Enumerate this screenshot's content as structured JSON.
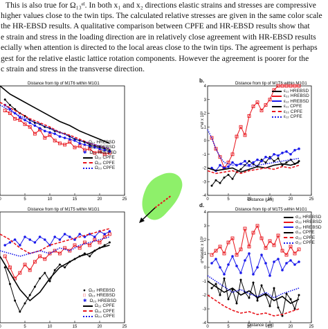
{
  "text_lines": [
    "This is also true for Ω₁₃ᵉˡ. In both x₁ and x₂ directions elastic strains and stresses are compressive",
    "higher values close to the twin tips. The calculated relative stresses are given in the same color scale",
    "the HR-EBSD results. A qualitative comparison between CPFE and HR-EBSD results show that",
    "e strain and stress in the loading direction are in relatively close agreement with HR-EBSD results",
    "ecially when attention is directed to the local areas close to the twin tips. The agreement is perhaps",
    "gest for the relative elastic lattice rotation components. However the agreement is poorer for the",
    "c strain and stress in the transverse direction."
  ],
  "panels": {
    "a_title": "Distance from tip of M1T6 within M1G1",
    "b_letter": "b.",
    "b_title": "Distance from tip of M1T6 within M1G1",
    "b_ylabel": "ε^el x 10³",
    "b_xlabel": "Distance (μm)",
    "c_title": "Distance from tip of M1T5 within M1G1",
    "d_letter": "d.",
    "d_title": "Distance from tip of M1T5 within M1G1",
    "d_ylabel": "σ^elastic x 10³",
    "d_xlabel": "Distance (μm)"
  },
  "legends": {
    "a": [
      "Ω₁₂ HREBSD",
      "Ω₁₃ HREBSD",
      "Ω₂₃ HREBSD",
      "Ω₁₂ CPFE",
      "Ω₁₃ CPFE",
      "Ω₂₃ CPFE"
    ],
    "b": [
      "ε₁₁ HREBSD",
      "ε₂₂ HREBSD",
      "ε₁₂ HREBSD",
      "ε₁₁ CPFE",
      "ε₂₂ CPFE",
      "ε₁₂ CPFE"
    ],
    "c": [
      "Ω₁₂ HREBSD",
      "Ω₁₃ HREBSD",
      "Ω₂₃ HREBSD",
      "Ω₁₂ CPFE",
      "Ω₁₃ CPFE",
      "Ω₂₃ CPFE"
    ],
    "d": [
      "σ₁₁ HREBSD",
      "σ₂₂ HREBSD",
      "σ₁₂ HREBSD",
      "σ₁₁ CPFE",
      "σ₂₂ CPFE",
      "σ₁₂ CPFE"
    ]
  },
  "colors": {
    "black": "#000000",
    "red": "#e8141b",
    "blue": "#1a1aeb",
    "grain": "#8ef06a"
  },
  "chart_data": [
    {
      "type": "line",
      "panel": "a",
      "title": "Distance from tip of M1T6 within M1G1",
      "xlim": [
        0,
        25
      ],
      "x_ticks": [
        0,
        5,
        10,
        15,
        20,
        25
      ],
      "series": [
        {
          "name": "Ω₁₂ HREBSD",
          "x": [
            1,
            2,
            3,
            4,
            5,
            6,
            7,
            8,
            9,
            10,
            11,
            12,
            13,
            14,
            15,
            16,
            17,
            18,
            19,
            20,
            21,
            22
          ],
          "y": [
            0.7,
            0.66,
            0.63,
            0.6,
            0.58,
            0.55,
            0.53,
            0.52,
            0.5,
            0.49,
            0.47,
            0.46,
            0.45,
            0.43,
            0.41,
            0.4,
            0.39,
            0.37,
            0.36,
            0.35,
            0.34,
            0.33
          ]
        },
        {
          "name": "Ω₁₃ HREBSD",
          "x": [
            1,
            2,
            3,
            4,
            5,
            6,
            7,
            8,
            9,
            10,
            11,
            12,
            13,
            14,
            15,
            16,
            17,
            18,
            19,
            20,
            21,
            22
          ],
          "y": [
            0.62,
            0.6,
            0.56,
            0.55,
            0.52,
            0.5,
            0.45,
            0.48,
            0.42,
            0.44,
            0.4,
            0.38,
            0.37,
            0.39,
            0.35,
            0.36,
            0.33,
            0.34,
            0.31,
            0.32,
            0.3,
            0.31
          ]
        },
        {
          "name": "Ω₂₃ HREBSD",
          "x": [
            1,
            2,
            3,
            4,
            5,
            6,
            7,
            8,
            9,
            10,
            11,
            12,
            13,
            14,
            15,
            16,
            17,
            18,
            19,
            20,
            21,
            22
          ],
          "y": [
            0.66,
            0.63,
            0.6,
            0.57,
            0.55,
            0.53,
            0.51,
            0.49,
            0.47,
            0.46,
            0.45,
            0.43,
            0.42,
            0.41,
            0.4,
            0.38,
            0.37,
            0.36,
            0.35,
            0.34,
            0.33,
            0.32
          ]
        },
        {
          "name": "Ω₁₂ CPFE",
          "x": [
            0,
            2,
            4,
            6,
            8,
            10,
            12,
            14,
            16,
            18,
            20,
            22
          ],
          "y": [
            0.8,
            0.74,
            0.7,
            0.66,
            0.62,
            0.58,
            0.54,
            0.51,
            0.47,
            0.44,
            0.41,
            0.38
          ]
        },
        {
          "name": "Ω₁₃ CPFE",
          "x": [
            0,
            2,
            4,
            6,
            8,
            10,
            12,
            14,
            16,
            18,
            20,
            22
          ],
          "y": [
            0.68,
            0.64,
            0.6,
            0.56,
            0.53,
            0.5,
            0.46,
            0.44,
            0.41,
            0.38,
            0.36,
            0.34
          ]
        },
        {
          "name": "Ω₂₃ CPFE",
          "x": [
            0,
            2,
            4,
            6,
            8,
            10,
            12,
            14,
            16,
            18,
            20,
            22
          ],
          "y": [
            0.66,
            0.62,
            0.58,
            0.55,
            0.52,
            0.49,
            0.46,
            0.43,
            0.4,
            0.38,
            0.36,
            0.34
          ]
        }
      ],
      "ylim": [
        0,
        0.8
      ]
    },
    {
      "type": "line",
      "panel": "b",
      "title": "Distance from tip of M1T6 within M1G1",
      "xlabel": "Distance (μm)",
      "ylabel": "ε^el x 10³",
      "xlim": [
        0,
        25
      ],
      "ylim": [
        -4,
        4
      ],
      "x_ticks": [
        0,
        5,
        10,
        15,
        20,
        25
      ],
      "y_ticks": [
        -4,
        -3,
        -2,
        -1,
        0,
        1,
        2,
        3,
        4
      ],
      "series": [
        {
          "name": "ε₁₁ HREBSD",
          "x": [
            1,
            2,
            3,
            4,
            5,
            6,
            7,
            8,
            9,
            10,
            11,
            12,
            13,
            14,
            15,
            16,
            17,
            18,
            19,
            20,
            21,
            22
          ],
          "y": [
            -3.3,
            -2.9,
            -3.1,
            -2.7,
            -2.5,
            -2.8,
            -2.3,
            -2.1,
            -1.8,
            -1.5,
            -1.7,
            -1.9,
            -1.4,
            -1.6,
            -1.2,
            -1.5,
            -1.3,
            -1.8,
            -1.6,
            -1.4,
            -1.7,
            -1.5
          ]
        },
        {
          "name": "ε₂₂ HREBSD",
          "x": [
            1,
            2,
            3,
            4,
            5,
            6,
            7,
            8,
            9,
            10,
            11,
            12,
            13,
            14,
            15,
            16,
            17,
            18,
            19,
            20,
            21,
            22
          ],
          "y": [
            0.2,
            -0.6,
            -1.2,
            -2.0,
            -1.6,
            -1.0,
            0.3,
            1.0,
            0.4,
            1.8,
            2.5,
            2.8,
            2.2,
            2.6,
            3.0,
            3.7,
            4.0,
            4.0,
            4.0,
            4.0,
            4.0,
            4.0
          ]
        },
        {
          "name": "ε₁₂ HREBSD",
          "x": [
            1,
            2,
            3,
            4,
            5,
            6,
            7,
            8,
            9,
            10,
            11,
            12,
            13,
            14,
            15,
            16,
            17,
            18,
            19,
            20,
            21,
            22
          ],
          "y": [
            -2.0,
            -2.2,
            -1.8,
            -2.0,
            -1.9,
            -1.6,
            -1.8,
            -1.7,
            -1.5,
            -1.8,
            -1.6,
            -1.4,
            -1.5,
            -1.2,
            -1.3,
            -1.0,
            -1.1,
            -0.9,
            -0.8,
            -1.0,
            -0.7,
            -0.6
          ]
        },
        {
          "name": "ε₁₁ CPFE",
          "x": [
            0,
            2,
            4,
            6,
            8,
            10,
            12,
            14,
            16,
            18,
            20,
            22
          ],
          "y": [
            -2.0,
            -2.2,
            -2.1,
            -2.0,
            -2.3,
            -2.1,
            -1.9,
            -2.0,
            -1.8,
            -1.7,
            -1.8,
            -1.6
          ]
        },
        {
          "name": "ε₂₂ CPFE",
          "x": [
            0,
            2,
            4,
            6,
            8,
            10,
            12,
            14,
            16,
            18,
            20,
            22
          ],
          "y": [
            -2.2,
            -2.4,
            -2.3,
            -2.2,
            -2.4,
            -2.2,
            -2.1,
            -2.0,
            -2.1,
            -1.9,
            -2.0,
            -1.8
          ]
        },
        {
          "name": "ε₁₂ CPFE",
          "x": [
            0,
            1,
            2,
            3,
            4,
            6,
            8,
            10,
            12,
            14,
            16,
            18,
            20,
            22
          ],
          "y": [
            0.8,
            0.2,
            -0.6,
            -1.2,
            -1.6,
            -1.8,
            -1.7,
            -1.9,
            -1.8,
            -1.7,
            -1.6,
            -1.5,
            -1.4,
            -1.3
          ]
        }
      ]
    },
    {
      "type": "line",
      "panel": "c",
      "title": "Distance from tip of M1T5 within M1G1",
      "xlim": [
        0,
        25
      ],
      "x_ticks": [
        0,
        5,
        10,
        15,
        20,
        25
      ],
      "series": [
        {
          "name": "Ω₁₂ HREBSD",
          "x": [
            1,
            2,
            3,
            4,
            5,
            6,
            7,
            8,
            9,
            10,
            11,
            12,
            13,
            14,
            15,
            16,
            17,
            18,
            19,
            20,
            21,
            22
          ],
          "y": [
            -1.0,
            -1.6,
            -2.2,
            -2.6,
            -2.3,
            -2.0,
            -1.7,
            -1.4,
            -1.2,
            -1.5,
            -1.1,
            -0.9,
            -1.0,
            -0.8,
            -0.7,
            -0.6,
            -0.5,
            -0.6,
            -0.4,
            -0.3,
            -0.2,
            -0.1
          ]
        },
        {
          "name": "Ω₁₃ HREBSD",
          "x": [
            1,
            2,
            3,
            4,
            5,
            6,
            7,
            8,
            9,
            10,
            11,
            12,
            13,
            14,
            15,
            16,
            17,
            18,
            19,
            20,
            21,
            22
          ],
          "y": [
            -0.6,
            -1.0,
            -1.4,
            -1.2,
            -0.9,
            -1.1,
            -0.8,
            -0.6,
            -0.7,
            -0.5,
            -0.4,
            -0.5,
            -0.3,
            -0.4,
            -0.2,
            -0.3,
            -0.1,
            -0.2,
            0.0,
            -0.1,
            0.1,
            0.2
          ]
        },
        {
          "name": "Ω₂₃ HREBSD",
          "x": [
            1,
            2,
            3,
            4,
            5,
            6,
            7,
            8,
            9,
            10,
            11,
            12,
            13,
            14,
            15,
            16,
            17,
            18,
            19,
            20,
            21,
            22
          ],
          "y": [
            -0.2,
            -0.1,
            0.0,
            -0.2,
            0.1,
            0.0,
            -0.1,
            0.1,
            0.0,
            -0.2,
            0.1,
            0.0,
            0.2,
            0.1,
            0.0,
            0.2,
            0.1,
            0.2,
            0.1,
            0.3,
            0.2,
            0.3
          ]
        },
        {
          "name": "Ω₁₂ CPFE",
          "x": [
            0,
            2,
            4,
            6,
            8,
            10,
            12,
            14,
            16,
            18,
            20,
            22
          ],
          "y": [
            -0.6,
            -1.2,
            -1.8,
            -2.2,
            -1.9,
            -1.4,
            -1.0,
            -0.8,
            -0.6,
            -0.5,
            -0.3,
            -0.2
          ]
        },
        {
          "name": "Ω₁₃ CPFE",
          "x": [
            0,
            2,
            4,
            6,
            8,
            10,
            12,
            14,
            16,
            18,
            20,
            22
          ],
          "y": [
            0.2,
            0.0,
            -0.3,
            -0.5,
            -0.4,
            -0.2,
            -0.1,
            0.0,
            0.1,
            0.2,
            0.3,
            0.4
          ]
        },
        {
          "name": "Ω₂₃ CPFE",
          "x": [
            0,
            2,
            4,
            6,
            8,
            10,
            12,
            14,
            16,
            18,
            20,
            22
          ],
          "y": [
            -0.4,
            -0.5,
            -0.6,
            -0.5,
            -0.4,
            -0.5,
            -0.3,
            -0.4,
            -0.2,
            -0.1,
            0.0,
            0.1
          ]
        }
      ],
      "ylim": [
        -3,
        1
      ]
    },
    {
      "type": "line",
      "panel": "d",
      "title": "Distance from tip of M1T5 within M1G1",
      "xlabel": "Distance (μm)",
      "ylabel": "σ^elastic x 10³",
      "xlim": [
        0,
        25
      ],
      "ylim": [
        -4,
        4
      ],
      "x_ticks": [
        0,
        5,
        10,
        15,
        20,
        25
      ],
      "y_ticks": [
        -4,
        -3,
        -2,
        -1,
        0,
        1,
        2,
        3,
        4
      ],
      "series": [
        {
          "name": "σ₁₁ HREBSD",
          "x": [
            1,
            2,
            3,
            4,
            5,
            6,
            7,
            8,
            9,
            10,
            11,
            12,
            13,
            14,
            15,
            16,
            17,
            18,
            19,
            20,
            21,
            22
          ],
          "y": [
            -1.5,
            -1.2,
            -2.0,
            -0.8,
            -2.3,
            -1.6,
            -2.6,
            -0.9,
            -1.8,
            -2.2,
            -1.1,
            -2.4,
            -1.3,
            -2.0,
            -2.8,
            -1.5,
            -2.9,
            -3.5,
            -1.9,
            -2.3,
            -3.0,
            -2.0
          ]
        },
        {
          "name": "σ₂₂ HREBSD",
          "x": [
            1,
            2,
            3,
            4,
            5,
            6,
            7,
            8,
            9,
            10,
            11,
            12,
            13,
            14,
            15,
            16,
            17,
            18,
            19,
            20,
            21,
            22
          ],
          "y": [
            0.9,
            1.2,
            1.5,
            1.0,
            1.8,
            2.1,
            0.9,
            1.3,
            2.8,
            1.5,
            2.5,
            3.0,
            2.1,
            1.4,
            1.9,
            1.6,
            2.3,
            1.2,
            0.9,
            1.5,
            1.0,
            1.3
          ]
        },
        {
          "name": "σ₁₂ HREBSD",
          "x": [
            1,
            2,
            3,
            4,
            5,
            6,
            7,
            8,
            9,
            10,
            11,
            12,
            13,
            14,
            15,
            16,
            17,
            18,
            19,
            20,
            21,
            22
          ],
          "y": [
            0.3,
            0.6,
            0.0,
            -0.5,
            0.2,
            0.8,
            0.1,
            -0.4,
            0.5,
            1.0,
            -0.5,
            0.0,
            0.9,
            0.3,
            -0.6,
            0.4,
            0.6,
            -0.2,
            0.3,
            0.5,
            0.2,
            0.4
          ]
        },
        {
          "name": "σ₁₁ CPFE",
          "x": [
            0,
            2,
            4,
            6,
            8,
            10,
            12,
            14,
            16,
            18,
            20,
            22
          ],
          "y": [
            -1.0,
            -1.4,
            -1.8,
            -1.5,
            -2.0,
            -1.7,
            -2.2,
            -1.9,
            -2.4,
            -2.1,
            -2.6,
            -2.3
          ]
        },
        {
          "name": "σ₂₂ CPFE",
          "x": [
            0,
            2,
            4,
            6,
            8,
            10,
            12,
            14,
            16,
            18,
            20,
            22
          ],
          "y": [
            -2.0,
            -2.4,
            -2.8,
            -3.1,
            -3.3,
            -3.2,
            -3.4,
            -3.3,
            -3.5,
            -3.4,
            -3.2,
            -3.0
          ]
        },
        {
          "name": "σ₁₂ CPFE",
          "x": [
            0,
            2,
            4,
            6,
            8,
            10,
            12,
            14,
            16,
            18,
            20,
            22
          ],
          "y": [
            -0.6,
            -1.0,
            -1.4,
            -1.8,
            -1.6,
            -1.9,
            -2.1,
            -1.8,
            -2.2,
            -1.9,
            -1.7,
            -1.5
          ]
        }
      ]
    }
  ]
}
